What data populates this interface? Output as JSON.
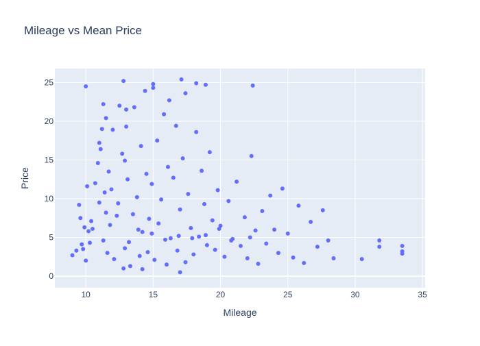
{
  "chart_data": {
    "type": "scatter",
    "title": "Mileage vs Mean Price",
    "xlabel": "Mileage",
    "ylabel": "Price",
    "xlim": [
      7.7,
      35.2
    ],
    "ylim": [
      -1.5,
      26.8
    ],
    "xticks": [
      10,
      15,
      20,
      25,
      30,
      35
    ],
    "yticks": [
      0,
      5,
      10,
      15,
      20,
      25
    ],
    "grid": true,
    "marker_color": "#636efa",
    "plot_background": "#e5ecf6",
    "series": [
      {
        "name": "",
        "x": [
          9.0,
          9.3,
          9.5,
          9.6,
          9.7,
          9.8,
          9.9,
          10.0,
          10.0,
          10.1,
          10.2,
          10.3,
          10.4,
          10.5,
          10.7,
          10.9,
          11.0,
          11.2,
          11.3,
          11.5,
          11.0,
          11.1,
          11.3,
          11.4,
          11.5,
          11.6,
          11.7,
          11.8,
          11.9,
          12.0,
          12.1,
          12.3,
          12.4,
          12.5,
          12.7,
          12.8,
          12.9,
          13.0,
          13.1,
          13.2,
          13.3,
          13.5,
          13.6,
          13.8,
          14.0,
          14.1,
          14.2,
          14.4,
          14.5,
          14.6,
          14.7,
          14.9,
          15.0,
          15.1,
          15.3,
          15.4,
          15.6,
          15.8,
          16.0,
          16.1,
          16.3,
          16.5,
          16.7,
          16.8,
          17.0,
          17.1,
          17.2,
          17.4,
          17.6,
          17.8,
          18.0,
          18.2,
          18.4,
          18.6,
          18.8,
          19.0,
          19.2,
          19.4,
          19.6,
          19.8,
          20.0,
          20.3,
          20.6,
          20.9,
          21.2,
          21.5,
          21.8,
          22.0,
          22.3,
          22.6,
          22.8,
          23.1,
          23.4,
          23.7,
          24.0,
          24.3,
          24.6,
          25.0,
          25.4,
          25.8,
          26.2,
          26.7,
          27.2,
          27.6,
          28.0,
          28.4,
          12.8,
          13.0,
          14.2,
          15.0,
          16.2,
          17.0,
          17.4,
          18.2,
          18.9,
          22.4,
          12.9,
          13.9,
          14.9,
          15.9,
          16.9,
          17.9,
          18.9,
          19.9,
          20.8,
          22.2,
          30.5,
          31.8,
          31.8,
          33.5,
          33.5,
          33.5
        ],
        "y": [
          2.7,
          3.3,
          9.2,
          7.5,
          4.1,
          3.5,
          6.3,
          24.5,
          2.0,
          11.6,
          5.8,
          4.3,
          7.1,
          6.1,
          12.0,
          14.6,
          17.2,
          19.0,
          22.2,
          8.2,
          9.5,
          16.4,
          4.6,
          10.8,
          20.4,
          3.0,
          13.5,
          6.6,
          11.2,
          18.9,
          2.2,
          7.8,
          9.4,
          22.0,
          15.8,
          25.2,
          3.6,
          19.3,
          12.5,
          4.4,
          1.3,
          8.0,
          21.8,
          10.2,
          2.6,
          16.8,
          5.7,
          23.9,
          13.2,
          3.1,
          7.4,
          11.9,
          24.3,
          2.1,
          17.5,
          6.8,
          9.9,
          20.9,
          1.5,
          14.1,
          4.9,
          12.7,
          19.4,
          3.3,
          8.6,
          25.4,
          15.2,
          1.8,
          10.6,
          6.2,
          2.8,
          18.6,
          5.1,
          13.6,
          9.3,
          4.0,
          16.0,
          7.2,
          3.4,
          11.1,
          6.5,
          2.5,
          9.7,
          4.8,
          12.2,
          3.9,
          7.6,
          2.3,
          15.5,
          5.9,
          1.6,
          8.4,
          4.2,
          10.4,
          6.0,
          3.0,
          11.3,
          5.5,
          2.4,
          9.1,
          1.7,
          7.0,
          3.8,
          8.5,
          4.6,
          2.3,
          1.0,
          21.5,
          0.9,
          24.8,
          22.7,
          0.5,
          23.6,
          24.9,
          24.7,
          24.6,
          14.9,
          6.0,
          5.5,
          4.7,
          5.2,
          4.9,
          5.3,
          6.1,
          4.6,
          5.0,
          2.2,
          4.6,
          3.8,
          3.9,
          3.2,
          2.9
        ]
      }
    ]
  }
}
